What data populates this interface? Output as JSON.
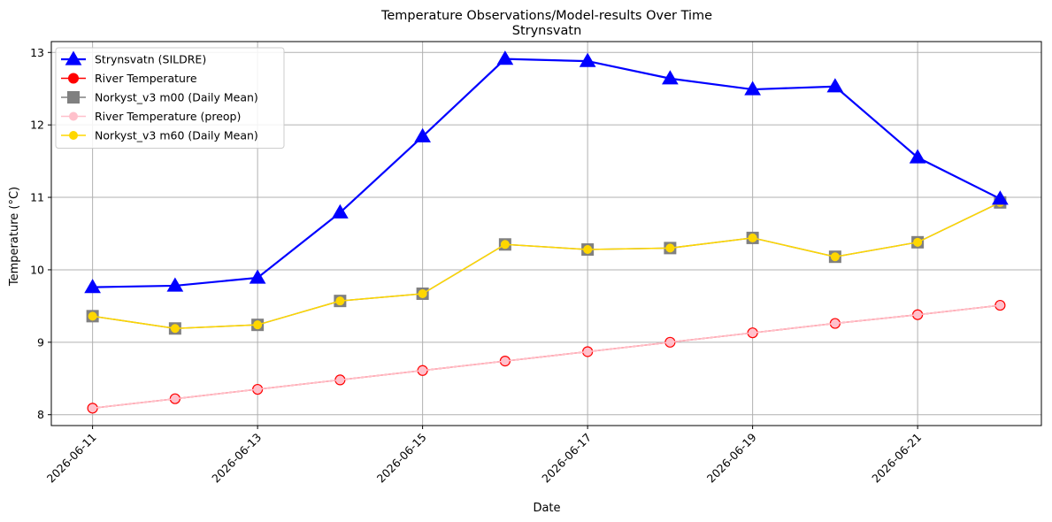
{
  "chart_data": {
    "type": "line",
    "title": "Temperature Observations/Model-results Over Time",
    "subtitle": "Strynsvatn",
    "xlabel": "Date",
    "ylabel": "Temperature (°C)",
    "grid": true,
    "legend_position": "top-left",
    "x": [
      "2026-06-11",
      "2026-06-12",
      "2026-06-13",
      "2026-06-14",
      "2026-06-15",
      "2026-06-16",
      "2026-06-17",
      "2026-06-18",
      "2026-06-19",
      "2026-06-20",
      "2026-06-21",
      "2026-06-22"
    ],
    "xlim": [
      "2026-06-10T12:00",
      "2026-06-22T12:00"
    ],
    "x_ticks": [
      "2026-06-11",
      "2026-06-13",
      "2026-06-15",
      "2026-06-17",
      "2026-06-19",
      "2026-06-21"
    ],
    "ylim": [
      7.85,
      13.15
    ],
    "y_ticks": [
      8,
      9,
      10,
      11,
      12,
      13
    ],
    "series": [
      {
        "name": "Strynsvatn (SILDRE)",
        "marker": "triangle",
        "color": "#0000ff",
        "values": [
          9.76,
          9.78,
          9.89,
          10.79,
          11.84,
          12.91,
          12.88,
          12.64,
          12.49,
          12.53,
          11.55,
          10.98
        ]
      },
      {
        "name": "River Temperature",
        "marker": "circle",
        "color": "#ff0000",
        "values": [
          8.09,
          8.22,
          8.35,
          8.48,
          8.61,
          8.74,
          8.87,
          9.0,
          9.13,
          9.26,
          9.38,
          9.51
        ]
      },
      {
        "name": "Norkyst_v3 m00 (Daily Mean)",
        "marker": "square",
        "color": "#808080",
        "values": [
          9.36,
          9.19,
          9.24,
          9.57,
          9.67,
          10.35,
          10.28,
          10.3,
          10.44,
          10.18,
          10.38,
          10.93
        ]
      },
      {
        "name": "River Temperature (preop)",
        "marker": "circle-small",
        "color": "#ffc0cb",
        "values": [
          8.09,
          8.22,
          8.35,
          8.48,
          8.61,
          8.74,
          8.87,
          9.0,
          9.13,
          9.26,
          9.38,
          9.51
        ]
      },
      {
        "name": "Norkyst_v3 m60 (Daily Mean)",
        "marker": "circle-small",
        "color": "#ffd700",
        "values": [
          9.36,
          9.19,
          9.24,
          9.57,
          9.67,
          10.35,
          10.28,
          10.3,
          10.44,
          10.18,
          10.38,
          10.93
        ]
      }
    ]
  }
}
